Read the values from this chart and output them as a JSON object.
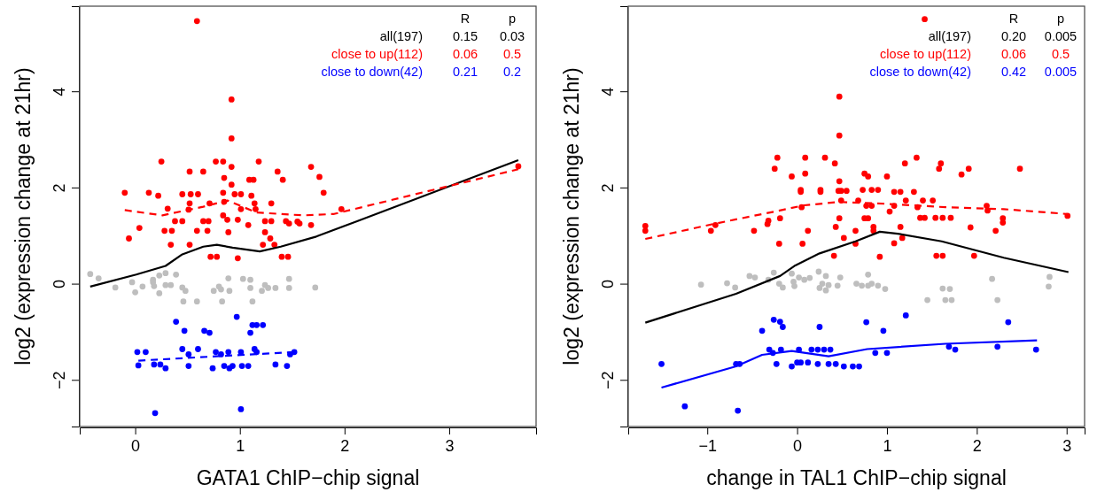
{
  "chart_data": [
    {
      "type": "scatter",
      "xlabel": "GATA1 ChIP−chip signal",
      "ylabel": "log2 (expression change at 21hr)",
      "xlim": [
        -0.53,
        3.83
      ],
      "ylim": [
        -2.97,
        5.77
      ],
      "xticks": [
        0,
        1,
        2,
        3
      ],
      "yticks": [
        {
          "value": -2,
          "label": "−2"
        },
        0,
        2,
        4
      ],
      "grid": false,
      "legend": "top right",
      "marker": "circle",
      "annotations": [
        "R",
        "p",
        "0.15",
        "0.03",
        "0.06",
        "0.5",
        "0.21",
        "0.2"
      ],
      "series": [
        {
          "name": "all(197)",
          "type": "line",
          "color": "#000000",
          "line_style": "solid",
          "marker": "none",
          "x": [
            -0.43,
            0.01,
            0.29,
            0.45,
            0.65,
            0.78,
            0.93,
            1.19,
            1.39,
            1.73,
            2.12,
            3.66
          ],
          "values": [
            -0.06,
            0.19,
            0.37,
            0.61,
            0.77,
            0.81,
            0.75,
            0.67,
            0.77,
            0.98,
            1.3,
            2.57
          ]
        },
        {
          "name": "close to up(112)",
          "type": "scatter",
          "color": "#ff0000",
          "x": [
            0.59,
            0.92,
            0.92,
            0.25,
            0.77,
            0.84,
            1.18,
            1.68,
            0.92,
            0.52,
            0.65,
            1.36,
            1.76,
            0.85,
            1.09,
            1.13,
            1.41,
            0.92,
            1.8,
            -0.1,
            0.13,
            0.22,
            0.45,
            0.53,
            0.6,
            0.84,
            0.95,
            1.01,
            1.11,
            0.52,
            0.71,
            0.85,
            1.14,
            1.3,
            0.31,
            0.51,
            1.01,
            1.15,
            1.97,
            0.38,
            0.45,
            0.65,
            0.7,
            0.84,
            0.88,
            0.98,
            1.24,
            1.3,
            1.44,
            1.55,
            1.68,
            3.66,
            0.04,
            -0.06,
            0.28,
            0.35,
            0.59,
            0.69,
            0.89,
            1.08,
            1.24,
            1.29,
            0.34,
            0.52,
            1.22,
            1.33,
            0.72,
            0.78,
            0.98,
            1.4,
            1.46,
            1.47,
            1.57
          ],
          "values": [
            5.46,
            3.83,
            3.02,
            2.54,
            2.54,
            2.54,
            2.54,
            2.43,
            2.43,
            2.33,
            2.33,
            2.33,
            2.22,
            2.2,
            2.16,
            2.16,
            2.16,
            2.06,
            1.89,
            1.89,
            1.89,
            1.83,
            1.86,
            1.86,
            1.86,
            1.89,
            1.86,
            1.86,
            1.83,
            1.67,
            1.67,
            1.7,
            1.67,
            1.67,
            1.56,
            1.54,
            1.55,
            1.55,
            1.55,
            1.3,
            1.3,
            1.3,
            1.3,
            1.42,
            1.33,
            1.33,
            1.3,
            1.3,
            1.3,
            1.29,
            1.22,
            2.44,
            1.16,
            0.94,
            1.1,
            1.1,
            1.1,
            1.1,
            1.07,
            1.22,
            1.07,
            0.94,
            0.81,
            0.81,
            0.81,
            0.81,
            0.56,
            0.56,
            0.53,
            0.56,
            0.56,
            1.25,
            1.25
          ]
        },
        {
          "name": "close to down(42)",
          "type": "scatter",
          "color": "#0000ff",
          "x": [
            0.97,
            0.39,
            1.12,
            1.16,
            1.22,
            0.47,
            0.66,
            0.71,
            1.1,
            0.02,
            0.1,
            0.45,
            0.51,
            0.6,
            0.77,
            0.82,
            0.89,
            1.01,
            1.14,
            1.16,
            1.48,
            1.52,
            0.03,
            0.18,
            0.24,
            0.29,
            0.51,
            0.74,
            0.85,
            0.9,
            0.93,
            1.02,
            1.08,
            1.34,
            1.45,
            0.19,
            1.01
          ],
          "values": [
            -0.69,
            -0.79,
            -0.86,
            -0.86,
            -0.86,
            -0.98,
            -0.98,
            -1.02,
            -1.02,
            -1.42,
            -1.42,
            -1.36,
            -1.47,
            -1.36,
            -1.42,
            -1.47,
            -1.42,
            -1.42,
            -1.36,
            -1.42,
            -1.47,
            -1.42,
            -1.7,
            -1.68,
            -1.68,
            -1.76,
            -1.71,
            -1.76,
            -1.71,
            -1.76,
            -1.71,
            -1.71,
            -1.71,
            -1.68,
            -1.71,
            -2.69,
            -2.61
          ]
        },
        {
          "type": "scatter",
          "color": "#bebebe",
          "x": [
            -0.43,
            -0.35,
            -0.19,
            -0.03,
            0.0,
            0.07,
            0.17,
            0.17,
            0.18,
            0.23,
            0.29,
            0.23,
            0.29,
            0.34,
            0.39,
            0.45,
            0.48,
            0.46,
            0.59,
            0.75,
            0.8,
            0.82,
            0.83,
            0.89,
            0.9,
            1.03,
            1.1,
            1.1,
            1.12,
            1.21,
            1.24,
            1.27,
            1.34,
            1.47,
            1.47,
            1.72
          ],
          "values": [
            0.2,
            0.11,
            -0.08,
            0.03,
            -0.18,
            -0.06,
            0.08,
            0.03,
            -0.05,
            0.17,
            0.22,
            -0.2,
            -0.03,
            -0.03,
            0.19,
            -0.08,
            -0.15,
            -0.37,
            -0.37,
            -0.15,
            -0.06,
            -0.12,
            -0.37,
            0.11,
            -0.15,
            0.1,
            0.08,
            -0.09,
            -0.37,
            -0.15,
            -0.03,
            -0.09,
            -0.09,
            0.1,
            -0.09,
            -0.08
          ]
        },
        {
          "type": "line",
          "color": "#ff0000",
          "line_style": "dashed",
          "marker": "none",
          "x": [
            -0.1,
            0.26,
            0.65,
            0.88,
            1.16,
            1.61,
            1.9,
            3.66
          ],
          "values": [
            1.53,
            1.42,
            1.6,
            1.73,
            1.48,
            1.42,
            1.45,
            2.38
          ]
        },
        {
          "type": "line",
          "color": "#0000ff",
          "line_style": "dashed",
          "marker": "none",
          "x": [
            0.03,
            1.53
          ],
          "values": [
            -1.6,
            -1.42
          ]
        }
      ]
    },
    {
      "type": "scatter",
      "xlabel": "change in TAL1 ChIP−chip signal",
      "ylabel": "log2 (expression change at 21hr)",
      "xlim": [
        -1.88,
        3.2
      ],
      "ylim": [
        -2.97,
        5.77
      ],
      "xticks": [
        {
          "value": -1,
          "label": "−1"
        },
        0,
        1,
        2,
        3
      ],
      "yticks": [
        {
          "value": -2,
          "label": "−2"
        },
        0,
        2,
        4
      ],
      "grid": false,
      "legend": "top right",
      "marker": "circle",
      "annotations": [
        "R",
        "p",
        "0.20",
        "0.005",
        "0.06",
        "0.5",
        "0.42",
        "0.005"
      ],
      "series": [
        {
          "name": "all(197)",
          "type": "line",
          "color": "#000000",
          "line_style": "solid",
          "marker": "none",
          "x": [
            -1.69,
            -0.68,
            -0.19,
            -0.02,
            0.25,
            0.65,
            0.92,
            1.12,
            1.61,
            2.3,
            3.02
          ],
          "values": [
            -0.81,
            -0.21,
            0.16,
            0.38,
            0.63,
            0.88,
            1.08,
            1.04,
            0.88,
            0.54,
            0.24
          ]
        },
        {
          "name": "close to up(112)",
          "type": "scatter",
          "color": "#ff0000",
          "x": [
            1.42,
            0.47,
            0.47,
            -0.22,
            0.09,
            0.31,
            1.33,
            -0.25,
            0.42,
            1.2,
            1.6,
            1.58,
            1.91,
            1.83,
            2.48,
            -0.06,
            0.09,
            0.75,
            0.79,
            1.0,
            0.47,
            0.04,
            0.04,
            0.26,
            0.26,
            0.46,
            0.49,
            0.55,
            0.73,
            0.83,
            0.9,
            1.08,
            1.15,
            1.3,
            0.49,
            0.68,
            1.21,
            1.4,
            1.51,
            0.05,
            0.77,
            0.83,
            1.08,
            1.34,
            2.11,
            2.12,
            1.03,
            3.01,
            -0.32,
            -0.19,
            0.47,
            0.75,
            0.79,
            1.37,
            1.42,
            1.54,
            1.62,
            1.71,
            2.29,
            -1.69,
            -0.91,
            -1.69,
            -0.96,
            -0.48,
            -0.33,
            0.12,
            0.43,
            0.65,
            0.85,
            0.85,
            1.15,
            1.93,
            2.21,
            2.29,
            -0.2,
            0.06,
            0.52,
            0.65,
            1.08,
            1.17,
            0.41,
            0.92,
            1.55,
            1.62,
            1.97
          ],
          "values": [
            5.5,
            3.89,
            3.08,
            2.62,
            2.62,
            2.62,
            2.62,
            2.39,
            2.5,
            2.5,
            2.5,
            2.39,
            2.39,
            2.27,
            2.39,
            2.23,
            2.29,
            2.29,
            2.23,
            2.23,
            2.13,
            1.95,
            1.91,
            1.95,
            1.91,
            1.93,
            1.93,
            1.93,
            1.95,
            1.95,
            1.95,
            1.91,
            1.91,
            1.91,
            1.73,
            1.73,
            1.73,
            1.73,
            1.73,
            1.59,
            1.62,
            1.62,
            1.62,
            1.59,
            1.62,
            1.52,
            1.5,
            1.41,
            1.31,
            1.36,
            1.36,
            1.36,
            1.36,
            1.37,
            1.37,
            1.37,
            1.37,
            1.37,
            1.36,
            1.2,
            1.22,
            1.1,
            1.1,
            1.1,
            1.24,
            1.1,
            1.18,
            1.1,
            1.18,
            1.1,
            1.18,
            1.17,
            1.1,
            1.27,
            0.83,
            0.83,
            0.95,
            0.83,
            0.84,
            0.95,
            0.58,
            0.56,
            0.58,
            0.58,
            0.58
          ]
        },
        {
          "name": "close to down(42)",
          "type": "scatter",
          "color": "#0000ff",
          "x": [
            1.21,
            -0.26,
            -0.19,
            -0.16,
            -0.39,
            0.25,
            0.77,
            0.96,
            2.35,
            -1.51,
            -0.68,
            -0.64,
            -0.31,
            -0.27,
            -0.18,
            -0.23,
            -0.06,
            0.0,
            0.04,
            0.12,
            0.02,
            0.16,
            0.23,
            0.3,
            0.37,
            0.23,
            0.35,
            0.43,
            0.52,
            0.62,
            0.69,
            0.87,
            1.0,
            1.69,
            1.76,
            2.23,
            2.66,
            -1.25,
            -0.66
          ],
          "values": [
            -0.66,
            -0.75,
            -0.79,
            -0.9,
            -0.98,
            -0.9,
            -0.8,
            -0.98,
            -0.8,
            -1.67,
            -1.67,
            -1.67,
            -1.37,
            -1.44,
            -1.37,
            -1.67,
            -1.72,
            -1.64,
            -1.64,
            -1.64,
            -1.37,
            -1.37,
            -1.37,
            -1.37,
            -1.37,
            -1.67,
            -1.67,
            -1.67,
            -1.72,
            -1.72,
            -1.72,
            -1.44,
            -1.44,
            -1.31,
            -1.37,
            -1.31,
            -1.37,
            -2.55,
            -2.64
          ]
        },
        {
          "type": "scatter",
          "color": "#bebebe",
          "x": [
            -1.07,
            -0.78,
            -0.69,
            -0.53,
            -0.47,
            -0.32,
            -0.26,
            -0.2,
            -0.16,
            -0.06,
            -0.04,
            -0.03,
            0.02,
            0.08,
            0.14,
            0.24,
            0.32,
            0.25,
            0.28,
            0.32,
            0.35,
            0.45,
            0.48,
            0.66,
            0.72,
            0.79,
            0.83,
            0.9,
            0.98,
            0.79,
            1.45,
            1.62,
            1.7,
            1.65,
            1.72,
            2.17,
            2.23,
            2.8,
            2.81
          ],
          "values": [
            -0.02,
            0.01,
            -0.08,
            0.16,
            0.13,
            0.08,
            0.23,
            0.0,
            -0.08,
            0.21,
            0.04,
            -0.05,
            0.13,
            0.08,
            0.12,
            0.25,
            0.16,
            -0.09,
            0.0,
            -0.14,
            -0.03,
            -0.04,
            0.13,
            0.0,
            -0.04,
            -0.04,
            0.0,
            -0.04,
            -0.11,
            0.19,
            -0.34,
            -0.1,
            -0.11,
            -0.34,
            -0.34,
            0.1,
            -0.34,
            -0.06,
            0.14
          ]
        },
        {
          "type": "line",
          "color": "#ff0000",
          "line_style": "dashed",
          "marker": "none",
          "x": [
            -1.69,
            -0.91,
            -0.25,
            0.08,
            0.47,
            1.0,
            1.65,
            2.3,
            3.0
          ],
          "values": [
            0.93,
            1.25,
            1.5,
            1.63,
            1.7,
            1.66,
            1.59,
            1.55,
            1.45
          ]
        },
        {
          "type": "line",
          "color": "#0000ff",
          "line_style": "solid",
          "marker": "none",
          "x": [
            -1.51,
            -0.68,
            -0.39,
            -0.06,
            0.35,
            0.78,
            1.65,
            2.67
          ],
          "values": [
            -2.16,
            -1.72,
            -1.48,
            -1.4,
            -1.51,
            -1.36,
            -1.25,
            -1.18
          ]
        }
      ]
    }
  ]
}
